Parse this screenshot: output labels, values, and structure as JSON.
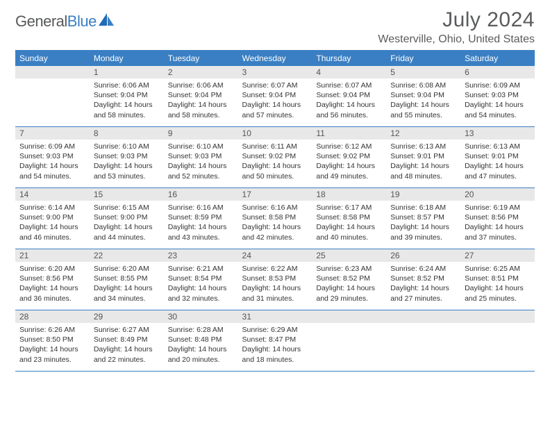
{
  "logo": {
    "text1": "General",
    "text2": "Blue"
  },
  "title": "July 2024",
  "location": "Westerville, Ohio, United States",
  "colors": {
    "header_bg": "#3a7fc3",
    "header_text": "#ffffff",
    "daynum_bg": "#e8e8e8",
    "text": "#333333",
    "title_color": "#5a5b5d"
  },
  "weekdays": [
    "Sunday",
    "Monday",
    "Tuesday",
    "Wednesday",
    "Thursday",
    "Friday",
    "Saturday"
  ],
  "start_offset": 1,
  "days": [
    {
      "n": 1,
      "sr": "6:06 AM",
      "ss": "9:04 PM",
      "dl": "14 hours and 58 minutes."
    },
    {
      "n": 2,
      "sr": "6:06 AM",
      "ss": "9:04 PM",
      "dl": "14 hours and 58 minutes."
    },
    {
      "n": 3,
      "sr": "6:07 AM",
      "ss": "9:04 PM",
      "dl": "14 hours and 57 minutes."
    },
    {
      "n": 4,
      "sr": "6:07 AM",
      "ss": "9:04 PM",
      "dl": "14 hours and 56 minutes."
    },
    {
      "n": 5,
      "sr": "6:08 AM",
      "ss": "9:04 PM",
      "dl": "14 hours and 55 minutes."
    },
    {
      "n": 6,
      "sr": "6:09 AM",
      "ss": "9:03 PM",
      "dl": "14 hours and 54 minutes."
    },
    {
      "n": 7,
      "sr": "6:09 AM",
      "ss": "9:03 PM",
      "dl": "14 hours and 54 minutes."
    },
    {
      "n": 8,
      "sr": "6:10 AM",
      "ss": "9:03 PM",
      "dl": "14 hours and 53 minutes."
    },
    {
      "n": 9,
      "sr": "6:10 AM",
      "ss": "9:03 PM",
      "dl": "14 hours and 52 minutes."
    },
    {
      "n": 10,
      "sr": "6:11 AM",
      "ss": "9:02 PM",
      "dl": "14 hours and 50 minutes."
    },
    {
      "n": 11,
      "sr": "6:12 AM",
      "ss": "9:02 PM",
      "dl": "14 hours and 49 minutes."
    },
    {
      "n": 12,
      "sr": "6:13 AM",
      "ss": "9:01 PM",
      "dl": "14 hours and 48 minutes."
    },
    {
      "n": 13,
      "sr": "6:13 AM",
      "ss": "9:01 PM",
      "dl": "14 hours and 47 minutes."
    },
    {
      "n": 14,
      "sr": "6:14 AM",
      "ss": "9:00 PM",
      "dl": "14 hours and 46 minutes."
    },
    {
      "n": 15,
      "sr": "6:15 AM",
      "ss": "9:00 PM",
      "dl": "14 hours and 44 minutes."
    },
    {
      "n": 16,
      "sr": "6:16 AM",
      "ss": "8:59 PM",
      "dl": "14 hours and 43 minutes."
    },
    {
      "n": 17,
      "sr": "6:16 AM",
      "ss": "8:58 PM",
      "dl": "14 hours and 42 minutes."
    },
    {
      "n": 18,
      "sr": "6:17 AM",
      "ss": "8:58 PM",
      "dl": "14 hours and 40 minutes."
    },
    {
      "n": 19,
      "sr": "6:18 AM",
      "ss": "8:57 PM",
      "dl": "14 hours and 39 minutes."
    },
    {
      "n": 20,
      "sr": "6:19 AM",
      "ss": "8:56 PM",
      "dl": "14 hours and 37 minutes."
    },
    {
      "n": 21,
      "sr": "6:20 AM",
      "ss": "8:56 PM",
      "dl": "14 hours and 36 minutes."
    },
    {
      "n": 22,
      "sr": "6:20 AM",
      "ss": "8:55 PM",
      "dl": "14 hours and 34 minutes."
    },
    {
      "n": 23,
      "sr": "6:21 AM",
      "ss": "8:54 PM",
      "dl": "14 hours and 32 minutes."
    },
    {
      "n": 24,
      "sr": "6:22 AM",
      "ss": "8:53 PM",
      "dl": "14 hours and 31 minutes."
    },
    {
      "n": 25,
      "sr": "6:23 AM",
      "ss": "8:52 PM",
      "dl": "14 hours and 29 minutes."
    },
    {
      "n": 26,
      "sr": "6:24 AM",
      "ss": "8:52 PM",
      "dl": "14 hours and 27 minutes."
    },
    {
      "n": 27,
      "sr": "6:25 AM",
      "ss": "8:51 PM",
      "dl": "14 hours and 25 minutes."
    },
    {
      "n": 28,
      "sr": "6:26 AM",
      "ss": "8:50 PM",
      "dl": "14 hours and 23 minutes."
    },
    {
      "n": 29,
      "sr": "6:27 AM",
      "ss": "8:49 PM",
      "dl": "14 hours and 22 minutes."
    },
    {
      "n": 30,
      "sr": "6:28 AM",
      "ss": "8:48 PM",
      "dl": "14 hours and 20 minutes."
    },
    {
      "n": 31,
      "sr": "6:29 AM",
      "ss": "8:47 PM",
      "dl": "14 hours and 18 minutes."
    }
  ],
  "labels": {
    "sunrise": "Sunrise:",
    "sunset": "Sunset:",
    "daylight": "Daylight:"
  }
}
